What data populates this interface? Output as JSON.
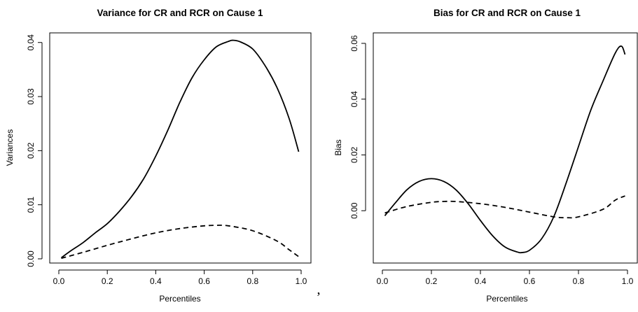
{
  "separator": ",",
  "chart_data": [
    {
      "type": "line",
      "title": "Variance for CR and RCR on Cause 1",
      "xlabel": "Percentiles",
      "ylabel": "Variances",
      "xlim": [
        0,
        1
      ],
      "ylim": [
        0,
        0.041
      ],
      "xticks": [
        "0.0",
        "0.2",
        "0.4",
        "0.6",
        "0.8",
        "1.0"
      ],
      "yticks": [
        "0.00",
        "0.01",
        "0.02",
        "0.03",
        "0.04"
      ],
      "grid": false,
      "legend": "none",
      "series": [
        {
          "style": "solid",
          "x": [
            0.01,
            0.05,
            0.1,
            0.15,
            0.2,
            0.25,
            0.3,
            0.35,
            0.4,
            0.45,
            0.5,
            0.55,
            0.6,
            0.65,
            0.7,
            0.72,
            0.75,
            0.8,
            0.85,
            0.9,
            0.95,
            0.99
          ],
          "y": [
            0.0002,
            0.0015,
            0.003,
            0.0048,
            0.0065,
            0.0088,
            0.0115,
            0.0148,
            0.019,
            0.0238,
            0.029,
            0.0335,
            0.0368,
            0.0392,
            0.0402,
            0.0404,
            0.0401,
            0.0388,
            0.0358,
            0.0317,
            0.026,
            0.0198
          ]
        },
        {
          "style": "dashed",
          "x": [
            0.01,
            0.1,
            0.2,
            0.3,
            0.4,
            0.5,
            0.6,
            0.65,
            0.7,
            0.8,
            0.9,
            0.95,
            0.99
          ],
          "y": [
            0.0001,
            0.0012,
            0.0025,
            0.0037,
            0.0048,
            0.0056,
            0.0061,
            0.0062,
            0.0061,
            0.0052,
            0.0033,
            0.0017,
            0.0004
          ]
        }
      ]
    },
    {
      "type": "line",
      "title": "Bias for CR and RCR on Cause 1",
      "xlabel": "Percentiles",
      "ylabel": "Bias",
      "xlim": [
        0,
        1
      ],
      "ylim": [
        -0.0155,
        0.0615
      ],
      "xticks": [
        "0.0",
        "0.2",
        "0.4",
        "0.6",
        "0.8",
        "1.0"
      ],
      "yticks": [
        "0.00",
        "0.02",
        "0.04",
        "0.06"
      ],
      "grid": false,
      "legend": "none",
      "series": [
        {
          "style": "solid",
          "x": [
            0.01,
            0.05,
            0.1,
            0.15,
            0.2,
            0.25,
            0.3,
            0.35,
            0.4,
            0.45,
            0.5,
            0.55,
            0.57,
            0.6,
            0.65,
            0.7,
            0.75,
            0.8,
            0.85,
            0.9,
            0.95,
            0.975,
            0.99
          ],
          "y": [
            -0.0018,
            0.0025,
            0.0075,
            0.0105,
            0.0115,
            0.0105,
            0.0075,
            0.0025,
            -0.0035,
            -0.009,
            -0.013,
            -0.0148,
            -0.015,
            -0.0142,
            -0.01,
            -0.002,
            0.01,
            0.023,
            0.036,
            0.0465,
            0.0565,
            0.059,
            0.056
          ]
        },
        {
          "style": "dashed",
          "x": [
            0.01,
            0.1,
            0.2,
            0.25,
            0.3,
            0.4,
            0.5,
            0.6,
            0.7,
            0.75,
            0.8,
            0.9,
            0.95,
            0.99
          ],
          "y": [
            -0.0008,
            0.0015,
            0.003,
            0.0033,
            0.0033,
            0.0025,
            0.0012,
            -0.0005,
            -0.0022,
            -0.0025,
            -0.0022,
            0.0005,
            0.0038,
            0.0053
          ]
        }
      ]
    }
  ]
}
